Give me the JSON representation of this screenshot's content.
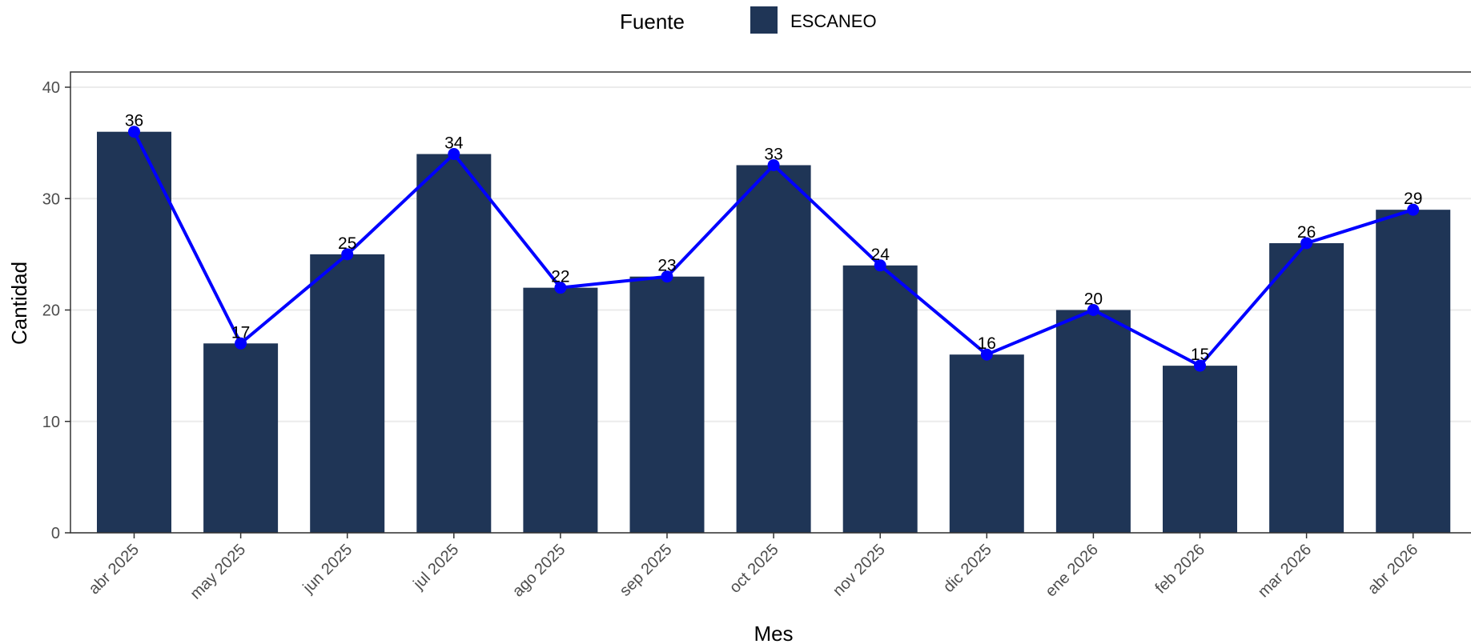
{
  "chart_data": {
    "type": "bar",
    "xlabel": "Mes",
    "ylabel": "Cantidad",
    "ylim": [
      0,
      40
    ],
    "yticks": [
      0,
      10,
      20,
      30,
      40
    ],
    "categories": [
      "abr 2025",
      "may 2025",
      "jun 2025",
      "jul 2025",
      "ago 2025",
      "sep 2025",
      "oct 2025",
      "nov 2025",
      "dic 2025",
      "ene 2026",
      "feb 2026",
      "mar 2026",
      "abr 2026"
    ],
    "series": [
      {
        "name": "ESCANEO",
        "values": [
          36,
          17,
          25,
          34,
          22,
          23,
          33,
          24,
          16,
          20,
          15,
          26,
          29
        ],
        "color": "#1f3556"
      }
    ],
    "line_overlay": {
      "values": [
        36,
        17,
        25,
        34,
        22,
        23,
        33,
        24,
        16,
        20,
        15,
        26,
        29
      ],
      "color": "#0000ff"
    },
    "legend": {
      "title": "Fuente",
      "position": "top"
    },
    "grid": true
  }
}
